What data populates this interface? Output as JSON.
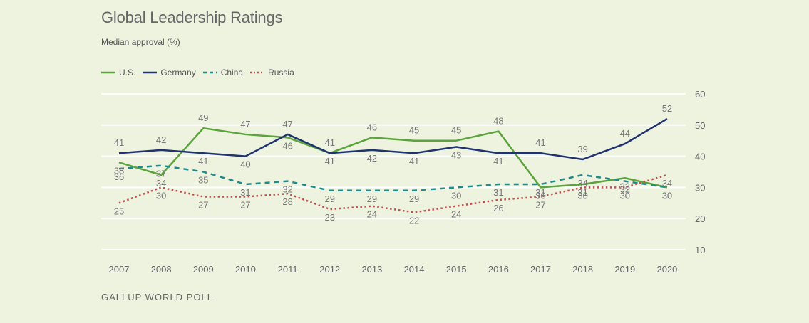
{
  "chart_data": {
    "type": "line",
    "title": "Global Leadership Ratings",
    "subtitle": "Median approval (%)",
    "source": "GALLUP WORLD POLL",
    "xlabel": "",
    "ylabel": "",
    "ylim": [
      10,
      60
    ],
    "yticks": [
      10,
      20,
      30,
      40,
      50,
      60
    ],
    "x": [
      "2007",
      "2008",
      "2009",
      "2010",
      "2011",
      "2012",
      "2013",
      "2014",
      "2015",
      "2016",
      "2017",
      "2018",
      "2019",
      "2020"
    ],
    "grid": true,
    "legend_position": "top-left",
    "series": [
      {
        "name": "U.S.",
        "color": "#5ba33b",
        "dash": "solid",
        "values": [
          38,
          34,
          49,
          47,
          46,
          41,
          46,
          45,
          45,
          48,
          30,
          31,
          33,
          30
        ],
        "labels": [
          "38",
          "34",
          "49",
          "47",
          "46",
          "41",
          "46",
          "45",
          "45",
          "48",
          "30",
          "31",
          "33",
          "30"
        ]
      },
      {
        "name": "Germany",
        "color": "#1f3370",
        "dash": "solid",
        "values": [
          41,
          42,
          41,
          40,
          47,
          41,
          42,
          41,
          43,
          41,
          41,
          39,
          44,
          52
        ],
        "labels": [
          "41",
          "42",
          "41",
          "40",
          "47",
          "41",
          "42",
          "41",
          "43",
          "41",
          "41",
          "39",
          "44",
          "52"
        ]
      },
      {
        "name": "China",
        "color": "#1f8a8a",
        "dash": "dashed",
        "values": [
          36,
          37,
          35,
          31,
          32,
          29,
          29,
          29,
          30,
          31,
          31,
          34,
          32,
          30
        ],
        "labels": [
          "36",
          "37",
          "35",
          "31",
          "32",
          "29",
          "29",
          "29",
          "30",
          "31",
          "31",
          "34",
          "32",
          "30"
        ]
      },
      {
        "name": "Russia",
        "color": "#c0504d",
        "dash": "dotted",
        "values": [
          25,
          30,
          27,
          27,
          28,
          23,
          24,
          22,
          24,
          26,
          27,
          30,
          30,
          34
        ],
        "labels": [
          "25",
          "30",
          "27",
          "27",
          "28",
          "23",
          "24",
          "22",
          "24",
          "26",
          "27",
          "30",
          "30",
          "34"
        ]
      }
    ]
  }
}
